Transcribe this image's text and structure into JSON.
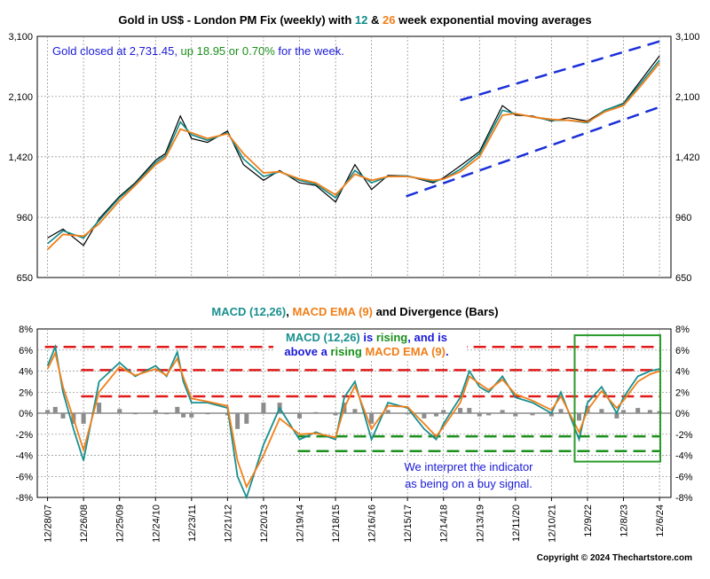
{
  "colors": {
    "gold": "#000000",
    "ema12": "#0f8a8a",
    "ema26": "#f07f1a",
    "macd": "#1a8f8f",
    "signal": "#f07f1a",
    "bars": "#8c8c8c",
    "red_dash": "#e01a1a",
    "green_dash": "#1a8f1a",
    "blue_dash": "#1a2fd8",
    "annotation_blue": "#1a1ad8",
    "annotation_green": "#1a8f1a",
    "box_green": "#2a9a2a"
  },
  "chart_data": [
    {
      "type": "line",
      "title": {
        "p1": "Gold in US$ - London PM Fix (weekly) with ",
        "n12": "12",
        "p2": " & ",
        "n26": "26",
        "p3": " week exponential moving averages"
      },
      "y_scale": "log",
      "ylim": [
        650,
        3100
      ],
      "yticks": [
        650,
        960,
        1420,
        2100,
        3100
      ],
      "ytick_labels": [
        "650",
        "960",
        "1,420",
        "2,100",
        "3,100"
      ],
      "series": [],
      "x_dates": [
        "2007-12-28",
        "2008-06-01",
        "2008-12-26",
        "2009-06-01",
        "2009-12-25",
        "2010-06-01",
        "2010-12-24",
        "2011-04-01",
        "2011-09-01",
        "2011-12-23",
        "2012-06-01",
        "2012-12-21",
        "2013-06-01",
        "2013-12-20",
        "2014-06-01",
        "2014-12-19",
        "2015-06-01",
        "2015-12-18",
        "2016-07-01",
        "2016-12-16",
        "2017-06-01",
        "2017-12-15",
        "2018-09-01",
        "2018-12-14",
        "2019-06-01",
        "2019-12-13",
        "2020-08-01",
        "2020-12-11",
        "2021-06-01",
        "2021-12-10",
        "2022-06-01",
        "2022-12-09",
        "2023-06-01",
        "2023-12-08",
        "2024-06-01",
        "2024-12-06"
      ],
      "gold_values": [
        840,
        890,
        800,
        950,
        1100,
        1200,
        1390,
        1450,
        1850,
        1600,
        1560,
        1680,
        1350,
        1220,
        1300,
        1200,
        1180,
        1060,
        1350,
        1150,
        1260,
        1255,
        1200,
        1240,
        1340,
        1470,
        1980,
        1860,
        1850,
        1790,
        1830,
        1790,
        1920,
        2010,
        2330,
        2731.45
      ],
      "ema12_values": [
        810,
        880,
        840,
        940,
        1090,
        1190,
        1370,
        1430,
        1780,
        1640,
        1580,
        1660,
        1400,
        1250,
        1290,
        1220,
        1190,
        1090,
        1300,
        1200,
        1250,
        1255,
        1210,
        1230,
        1310,
        1450,
        1920,
        1880,
        1840,
        1800,
        1800,
        1770,
        1920,
        2000,
        2290,
        2660
      ],
      "ema26_values": [
        780,
        860,
        850,
        920,
        1070,
        1180,
        1350,
        1410,
        1700,
        1660,
        1600,
        1650,
        1450,
        1280,
        1290,
        1230,
        1200,
        1110,
        1270,
        1220,
        1250,
        1250,
        1220,
        1230,
        1290,
        1420,
        1860,
        1880,
        1840,
        1810,
        1800,
        1780,
        1900,
        1980,
        2250,
        2610
      ],
      "channel_upper": {
        "x": [
          "2019-06-01",
          "2024-12-06"
        ],
        "y": [
          2050,
          3000
        ]
      },
      "channel_lower": {
        "x": [
          "2017-12-01",
          "2024-12-06"
        ],
        "y": [
          1100,
          1960
        ]
      },
      "annotation": {
        "p1": "Gold closed at 2,731.45, ",
        "p2": "up 18.95 or 0.70%",
        "p3": " for the week."
      }
    },
    {
      "type": "line",
      "title": {
        "p1": "MACD (12,26)",
        "p2": ", ",
        "p3": "MACD EMA (9)",
        "p4": " and Divergence (Bars)"
      },
      "ylim": [
        -8,
        8
      ],
      "yticks": [
        -8,
        -6,
        -4,
        -2,
        0,
        2,
        4,
        6,
        8
      ],
      "ytick_labels": [
        "-8%",
        "-6%",
        "-4%",
        "-2%",
        "0%",
        "2%",
        "4%",
        "6%",
        "8%"
      ],
      "x_dates": [
        "2007-12-28",
        "2008-03-15",
        "2008-06-01",
        "2008-09-15",
        "2008-12-26",
        "2009-06-01",
        "2009-12-25",
        "2010-06-01",
        "2010-12-24",
        "2011-04-15",
        "2011-08-01",
        "2011-10-01",
        "2011-12-23",
        "2012-06-01",
        "2012-12-21",
        "2013-04-01",
        "2013-07-01",
        "2013-12-20",
        "2014-06-01",
        "2014-12-19",
        "2015-06-01",
        "2015-12-18",
        "2016-03-15",
        "2016-07-01",
        "2016-12-16",
        "2017-06-01",
        "2017-12-15",
        "2018-06-01",
        "2018-10-01",
        "2018-12-14",
        "2019-06-01",
        "2019-09-01",
        "2019-12-13",
        "2020-03-15",
        "2020-08-01",
        "2020-12-11",
        "2021-06-01",
        "2021-12-10",
        "2022-03-15",
        "2022-09-15",
        "2022-12-09",
        "2023-05-01",
        "2023-10-01",
        "2023-12-08",
        "2024-05-01",
        "2024-09-01",
        "2024-12-06"
      ],
      "macd_values": [
        4.5,
        6.3,
        2.0,
        -1.5,
        -4.5,
        3.0,
        4.8,
        3.5,
        4.5,
        3.5,
        5.8,
        3.0,
        1.0,
        1.0,
        0.5,
        -6.0,
        -8.0,
        -3.0,
        0.5,
        -2.5,
        -1.8,
        -2.5,
        1.5,
        3.0,
        -2.5,
        1.0,
        0.5,
        -1.5,
        -2.5,
        -1.0,
        1.5,
        4.0,
        2.5,
        2.0,
        3.5,
        1.5,
        1.0,
        0.0,
        2.0,
        -2.5,
        1.0,
        2.5,
        0.0,
        1.5,
        3.5,
        4.0,
        4.2
      ],
      "signal_values": [
        4.2,
        5.7,
        2.5,
        -0.5,
        -3.5,
        2.0,
        4.4,
        3.6,
        4.2,
        3.6,
        5.2,
        3.4,
        1.4,
        1.1,
        0.7,
        -4.5,
        -7.0,
        -4.0,
        -0.5,
        -2.0,
        -1.9,
        -2.3,
        0.5,
        2.6,
        -1.5,
        0.7,
        0.6,
        -1.0,
        -2.2,
        -1.3,
        1.0,
        3.5,
        2.8,
        2.2,
        3.2,
        1.8,
        1.2,
        0.3,
        1.6,
        -1.8,
        0.3,
        2.1,
        0.5,
        1.2,
        3.0,
        3.7,
        4.0
      ],
      "divergence_values": [
        0.3,
        0.6,
        -0.5,
        -1.0,
        -1.0,
        1.0,
        0.4,
        -0.1,
        0.3,
        -0.1,
        0.6,
        -0.4,
        -0.4,
        -0.1,
        -0.2,
        -1.5,
        -1.0,
        1.0,
        1.0,
        -0.5,
        0.1,
        -0.2,
        1.0,
        0.4,
        -1.0,
        0.3,
        -0.1,
        -0.5,
        -0.3,
        0.3,
        0.5,
        0.5,
        -0.3,
        -0.2,
        0.3,
        -0.3,
        -0.2,
        -0.3,
        0.4,
        -0.7,
        0.7,
        0.4,
        -0.5,
        0.3,
        0.5,
        0.3,
        0.2
      ],
      "red_levels": [
        6.3,
        4.1,
        1.6
      ],
      "green_levels": [
        -2.2,
        -3.6
      ],
      "annotation_top": {
        "p1": "MACD (12,26)",
        "p2": " is ",
        "p3": "rising",
        "p4": ", and is",
        "p5": "above a ",
        "p6": "rising",
        "p7": " ",
        "p8": "MACD EMA (9)",
        "p9": "."
      },
      "annotation_bottom": {
        "line1": "We interpret the indicator",
        "line2": "as being on a buy signal."
      },
      "highlight_box": {
        "x": [
          "2022-08-01",
          "2025-03-01"
        ],
        "y": [
          7.4,
          -4.6
        ]
      }
    }
  ],
  "x_axis": {
    "tick_dates": [
      "2007-12-28",
      "2008-12-26",
      "2009-12-25",
      "2010-12-24",
      "2011-12-23",
      "2012-12-21",
      "2013-12-20",
      "2014-12-19",
      "2015-12-18",
      "2016-12-16",
      "2017-12-15",
      "2018-12-14",
      "2019-12-13",
      "2020-12-11",
      "2021-12-10",
      "2022-12-09",
      "2023-12-08",
      "2024-12-06"
    ],
    "tick_labels": [
      "12/28/07",
      "12/26/08",
      "12/25/09",
      "12/24/10",
      "12/23/11",
      "12/21/12",
      "12/20/13",
      "12/19/14",
      "12/18/15",
      "12/16/16",
      "12/15/17",
      "12/14/18",
      "12/13/19",
      "12/11/20",
      "12/10/21",
      "12/9/22",
      "12/8/23",
      "12/6/24"
    ]
  },
  "copyright": "Copyright © 2024 Thechartstore.com"
}
